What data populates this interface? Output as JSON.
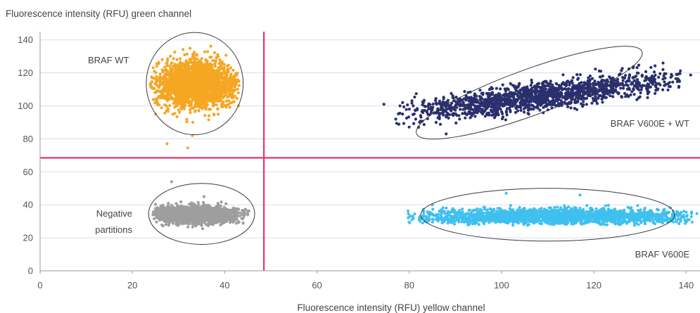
{
  "chart_data": {
    "type": "scatter",
    "title": "",
    "ylabel": "Fluorescence intensity (RFU) green channel",
    "xlabel": "Fluorescence intensity (RFU) yellow channel",
    "xlim": [
      0,
      143
    ],
    "ylim": [
      0,
      145
    ],
    "x_ticks": [
      0,
      20,
      40,
      60,
      80,
      100,
      120,
      140
    ],
    "y_ticks": [
      0,
      20,
      40,
      60,
      80,
      100,
      120,
      140
    ],
    "grid": "horizontal",
    "thresholds": {
      "x": 48.5,
      "y": 68.5,
      "color": "#e8336d"
    },
    "clusters": [
      {
        "name": "BRAF WT",
        "label": "BRAF WT",
        "color": "#f5a623",
        "center": [
          34,
          113
        ],
        "spread": [
          4.5,
          7
        ],
        "count": 2200,
        "outliers": [
          [
            27.5,
            77
          ],
          [
            32,
            74.5
          ],
          [
            33,
            82
          ],
          [
            25,
            95
          ],
          [
            43,
            100
          ]
        ],
        "ellipse": {
          "cx": 33.5,
          "cy": 113.5,
          "rx": 10.5,
          "ry": 31
        }
      },
      {
        "name": "BRAF V600E + WT",
        "label": "BRAF V600E + WT",
        "color": "#2a2f6e",
        "slope": 0.36,
        "x_range": [
          82,
          135
        ],
        "intercept_at_100": 103,
        "y_jitter": 4,
        "count": 1500,
        "outliers": [
          [
            74.5,
            101
          ],
          [
            78,
            100
          ],
          [
            80,
            98
          ],
          [
            82,
            87
          ],
          [
            88,
            83
          ],
          [
            135,
            126
          ]
        ],
        "ellipse": {
          "cx": 106,
          "cy": 108,
          "rx": 26,
          "ry": 14,
          "angle": -20
        }
      },
      {
        "name": "Negative partitions",
        "label": "Negative partitions",
        "color": "#9e9e9e",
        "center": [
          33.5,
          34
        ],
        "spread": [
          4.5,
          2.5
        ],
        "count": 1800,
        "outliers": [
          [
            28.5,
            54
          ],
          [
            35.5,
            45
          ],
          [
            44,
            29
          ]
        ],
        "ellipse": {
          "cx": 35,
          "cy": 34.5,
          "rx": 11.5,
          "ry": 18.5
        }
      },
      {
        "name": "BRAF V600E",
        "label": "BRAF V600E",
        "color": "#3fc0ef",
        "x_range": [
          84,
          138
        ],
        "center_y": 33,
        "y_jitter": 2.2,
        "count": 2000,
        "outliers": [
          [
            85,
            40
          ],
          [
            84,
            31
          ],
          [
            93,
            28
          ],
          [
            101,
            47
          ],
          [
            117,
            46
          ],
          [
            138,
            36
          ],
          [
            136,
            35
          ]
        ],
        "ellipse": {
          "cx": 110,
          "cy": 34,
          "rx": 27.5,
          "ry": 16
        }
      }
    ]
  }
}
